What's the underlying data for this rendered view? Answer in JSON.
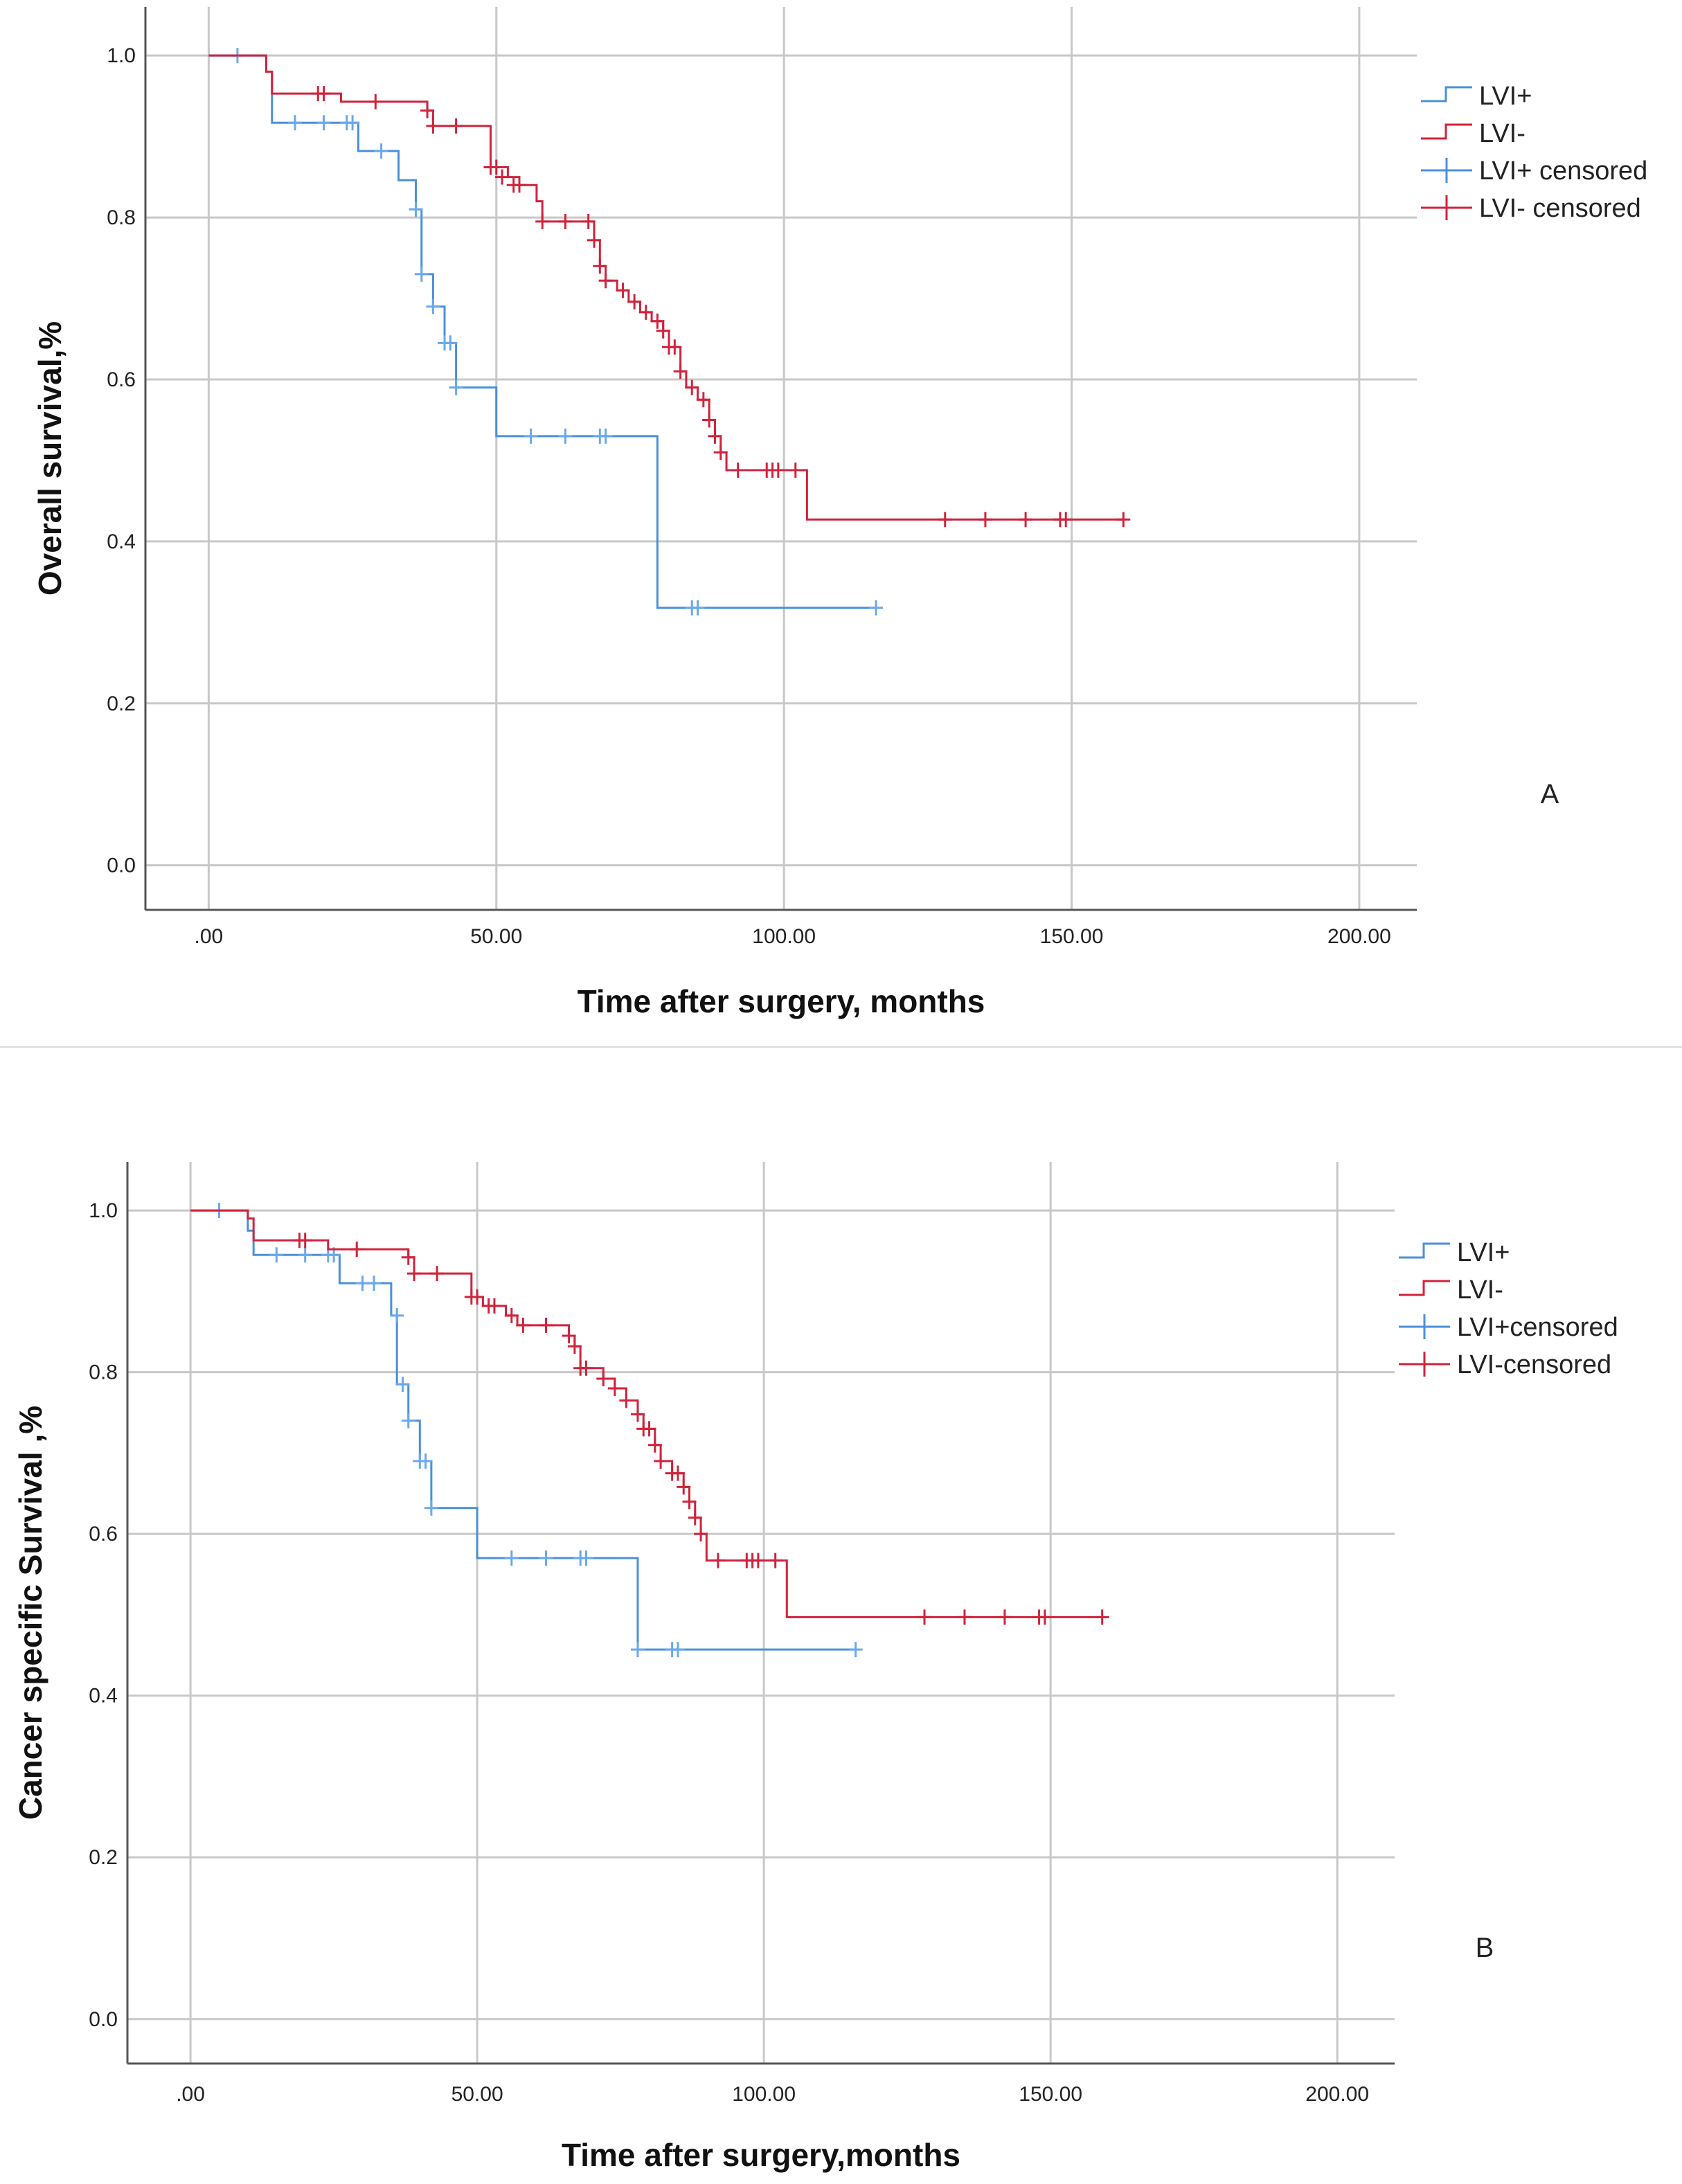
{
  "chart_data": [
    {
      "type": "line",
      "subtype": "kaplan-meier",
      "panel_label": "A",
      "xlabel": "Time after surgery, months",
      "ylabel": "Overall survival,%",
      "xlim": [
        -11,
        210
      ],
      "ylim": [
        -0.055,
        1.06
      ],
      "x_ticks": [
        0,
        50,
        100,
        150,
        200
      ],
      "x_tick_labels": [
        ".00",
        "50.00",
        "100.00",
        "150.00",
        "200.00"
      ],
      "y_ticks": [
        0.0,
        0.2,
        0.4,
        0.6,
        0.8,
        1.0
      ],
      "y_tick_labels": [
        "0.0",
        "0.2",
        "0.4",
        "0.6",
        "0.8",
        "1.0"
      ],
      "grid": true,
      "legend_position": "top-right",
      "legend": [
        "LVI+",
        "LVI-",
        "LVI+ censored",
        "LVI- censored"
      ],
      "series": [
        {
          "name": "LVI+",
          "color": "#4a90d9",
          "steps": [
            [
              0,
              1.0
            ],
            [
              10,
              0.98
            ],
            [
              11,
              0.917
            ],
            [
              26,
              0.882
            ],
            [
              33,
              0.846
            ],
            [
              36,
              0.81
            ],
            [
              37,
              0.73
            ],
            [
              39,
              0.69
            ],
            [
              41,
              0.645
            ],
            [
              43,
              0.59
            ],
            [
              50,
              0.53
            ],
            [
              78,
              0.318
            ],
            [
              116,
              0.318
            ]
          ],
          "censored": [
            [
              5,
              1.0
            ],
            [
              15,
              0.917
            ],
            [
              20,
              0.917
            ],
            [
              24,
              0.917
            ],
            [
              25,
              0.917
            ],
            [
              30,
              0.882
            ],
            [
              36,
              0.81
            ],
            [
              37,
              0.73
            ],
            [
              39,
              0.69
            ],
            [
              41,
              0.645
            ],
            [
              42,
              0.645
            ],
            [
              43,
              0.59
            ],
            [
              56,
              0.53
            ],
            [
              62,
              0.53
            ],
            [
              68,
              0.53
            ],
            [
              69,
              0.53
            ],
            [
              84,
              0.318
            ],
            [
              85,
              0.318
            ],
            [
              116,
              0.318
            ]
          ]
        },
        {
          "name": "LVI-",
          "color": "#d0233c",
          "steps": [
            [
              0,
              1.0
            ],
            [
              10,
              0.98
            ],
            [
              11,
              0.953
            ],
            [
              23,
              0.943
            ],
            [
              38,
              0.932
            ],
            [
              39,
              0.913
            ],
            [
              49,
              0.862
            ],
            [
              52,
              0.85
            ],
            [
              54,
              0.84
            ],
            [
              57,
              0.82
            ],
            [
              58,
              0.795
            ],
            [
              66,
              0.795
            ],
            [
              67,
              0.772
            ],
            [
              68,
              0.74
            ],
            [
              69,
              0.722
            ],
            [
              71,
              0.71
            ],
            [
              73,
              0.696
            ],
            [
              75,
              0.683
            ],
            [
              77,
              0.672
            ],
            [
              79,
              0.66
            ],
            [
              80,
              0.64
            ],
            [
              82,
              0.61
            ],
            [
              83,
              0.59
            ],
            [
              85,
              0.575
            ],
            [
              87,
              0.55
            ],
            [
              88,
              0.53
            ],
            [
              89,
              0.51
            ],
            [
              90,
              0.488
            ],
            [
              104,
              0.427
            ],
            [
              159,
              0.427
            ]
          ],
          "censored": [
            [
              19,
              0.953
            ],
            [
              20,
              0.953
            ],
            [
              29,
              0.943
            ],
            [
              38,
              0.932
            ],
            [
              39,
              0.913
            ],
            [
              43,
              0.913
            ],
            [
              49,
              0.862
            ],
            [
              50,
              0.862
            ],
            [
              51,
              0.85
            ],
            [
              53,
              0.84
            ],
            [
              54,
              0.84
            ],
            [
              58,
              0.795
            ],
            [
              62,
              0.795
            ],
            [
              66,
              0.795
            ],
            [
              67,
              0.772
            ],
            [
              68,
              0.74
            ],
            [
              69,
              0.722
            ],
            [
              72,
              0.71
            ],
            [
              74,
              0.696
            ],
            [
              76,
              0.683
            ],
            [
              78,
              0.672
            ],
            [
              79,
              0.66
            ],
            [
              80,
              0.64
            ],
            [
              81,
              0.64
            ],
            [
              82,
              0.61
            ],
            [
              84,
              0.59
            ],
            [
              86,
              0.575
            ],
            [
              87,
              0.55
            ],
            [
              88,
              0.53
            ],
            [
              89,
              0.51
            ],
            [
              92,
              0.488
            ],
            [
              97,
              0.488
            ],
            [
              98,
              0.488
            ],
            [
              99,
              0.488
            ],
            [
              102,
              0.488
            ],
            [
              128,
              0.427
            ],
            [
              135,
              0.427
            ],
            [
              142,
              0.427
            ],
            [
              148,
              0.427
            ],
            [
              149,
              0.427
            ],
            [
              159,
              0.427
            ]
          ]
        }
      ]
    },
    {
      "type": "line",
      "subtype": "kaplan-meier",
      "panel_label": "B",
      "xlabel": "Time after surgery,months",
      "ylabel": "Cancer specific Survival ,%",
      "xlim": [
        -11,
        210
      ],
      "ylim": [
        -0.055,
        1.06
      ],
      "x_ticks": [
        0,
        50,
        100,
        150,
        200
      ],
      "x_tick_labels": [
        ".00",
        "50.00",
        "100.00",
        "150.00",
        "200.00"
      ],
      "y_ticks": [
        0.0,
        0.2,
        0.4,
        0.6,
        0.8,
        1.0
      ],
      "y_tick_labels": [
        "0.0",
        "0.2",
        "0.4",
        "0.6",
        "0.8",
        "1.0"
      ],
      "grid": true,
      "legend_position": "top-right",
      "legend": [
        "LVI+",
        "LVI-",
        "LVI+censored",
        "LVI-censored"
      ],
      "series": [
        {
          "name": "LVI+",
          "color": "#4a90d9",
          "steps": [
            [
              0,
              1.0
            ],
            [
              10,
              0.975
            ],
            [
              11,
              0.945
            ],
            [
              26,
              0.91
            ],
            [
              35,
              0.87
            ],
            [
              36,
              0.785
            ],
            [
              38,
              0.74
            ],
            [
              40,
              0.69
            ],
            [
              42,
              0.632
            ],
            [
              50,
              0.57
            ],
            [
              78,
              0.457
            ],
            [
              116,
              0.457
            ]
          ],
          "censored": [
            [
              5,
              1.0
            ],
            [
              15,
              0.945
            ],
            [
              20,
              0.945
            ],
            [
              24,
              0.945
            ],
            [
              25,
              0.945
            ],
            [
              30,
              0.91
            ],
            [
              32,
              0.91
            ],
            [
              36,
              0.87
            ],
            [
              37,
              0.785
            ],
            [
              38,
              0.74
            ],
            [
              40,
              0.69
            ],
            [
              41,
              0.69
            ],
            [
              42,
              0.632
            ],
            [
              56,
              0.57
            ],
            [
              62,
              0.57
            ],
            [
              68,
              0.57
            ],
            [
              69,
              0.57
            ],
            [
              78,
              0.457
            ],
            [
              84,
              0.457
            ],
            [
              85,
              0.457
            ],
            [
              116,
              0.457
            ]
          ]
        },
        {
          "name": "LVI-",
          "color": "#d0233c",
          "steps": [
            [
              0,
              1.0
            ],
            [
              10,
              0.99
            ],
            [
              11,
              0.963
            ],
            [
              24,
              0.952
            ],
            [
              38,
              0.942
            ],
            [
              39,
              0.922
            ],
            [
              49,
              0.893
            ],
            [
              51,
              0.882
            ],
            [
              55,
              0.87
            ],
            [
              57,
              0.858
            ],
            [
              66,
              0.845
            ],
            [
              67,
              0.832
            ],
            [
              68,
              0.805
            ],
            [
              72,
              0.792
            ],
            [
              74,
              0.78
            ],
            [
              76,
              0.765
            ],
            [
              78,
              0.748
            ],
            [
              79,
              0.73
            ],
            [
              81,
              0.71
            ],
            [
              82,
              0.69
            ],
            [
              84,
              0.675
            ],
            [
              86,
              0.658
            ],
            [
              87,
              0.64
            ],
            [
              88,
              0.62
            ],
            [
              89,
              0.6
            ],
            [
              90,
              0.567
            ],
            [
              104,
              0.497
            ],
            [
              159,
              0.497
            ]
          ],
          "censored": [
            [
              19,
              0.963
            ],
            [
              20,
              0.963
            ],
            [
              29,
              0.952
            ],
            [
              38,
              0.942
            ],
            [
              39,
              0.922
            ],
            [
              43,
              0.922
            ],
            [
              49,
              0.893
            ],
            [
              50,
              0.893
            ],
            [
              52,
              0.882
            ],
            [
              53,
              0.882
            ],
            [
              56,
              0.87
            ],
            [
              58,
              0.858
            ],
            [
              62,
              0.858
            ],
            [
              66,
              0.845
            ],
            [
              67,
              0.832
            ],
            [
              68,
              0.805
            ],
            [
              69,
              0.805
            ],
            [
              72,
              0.792
            ],
            [
              74,
              0.78
            ],
            [
              76,
              0.765
            ],
            [
              78,
              0.748
            ],
            [
              79,
              0.73
            ],
            [
              80,
              0.73
            ],
            [
              81,
              0.71
            ],
            [
              82,
              0.69
            ],
            [
              84,
              0.675
            ],
            [
              85,
              0.675
            ],
            [
              86,
              0.658
            ],
            [
              87,
              0.64
            ],
            [
              88,
              0.62
            ],
            [
              89,
              0.6
            ],
            [
              92,
              0.567
            ],
            [
              97,
              0.567
            ],
            [
              98,
              0.567
            ],
            [
              99,
              0.567
            ],
            [
              102,
              0.567
            ],
            [
              128,
              0.497
            ],
            [
              135,
              0.497
            ],
            [
              142,
              0.497
            ],
            [
              148,
              0.497
            ],
            [
              149,
              0.497
            ],
            [
              159,
              0.497
            ]
          ]
        }
      ]
    }
  ]
}
